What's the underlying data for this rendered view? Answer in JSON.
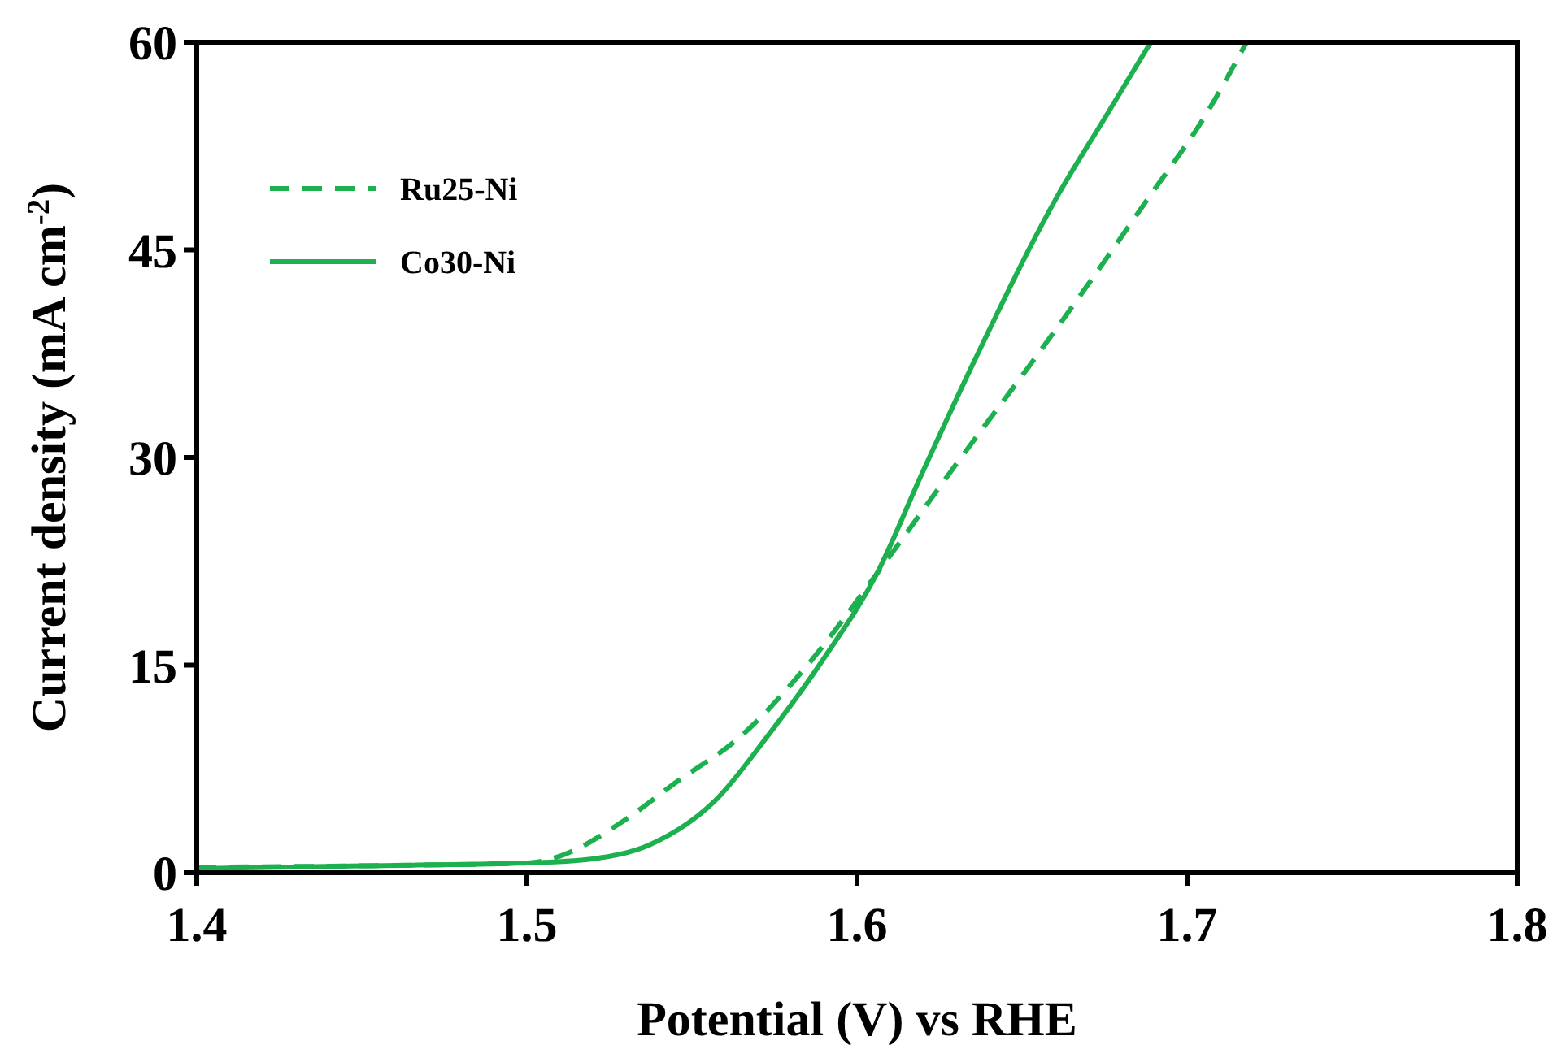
{
  "chart_data": {
    "type": "line",
    "xlabel": "Potential (V) vs RHE",
    "ylabel": "Current density (mA cm$^{-2}$)",
    "xlim": [
      1.4,
      1.8
    ],
    "xticks": [
      1.4,
      1.5,
      1.6,
      1.7,
      1.8
    ],
    "ylim": [
      0,
      60
    ],
    "yticks": [
      0,
      15,
      30,
      45,
      60
    ],
    "legend": "top left",
    "grid": false,
    "series": [
      {
        "name": "Ru25-Ni",
        "color": "#1db04f",
        "line_style": "dashed",
        "x": [
          1.4,
          1.45,
          1.5,
          1.51,
          1.529,
          1.545,
          1.565,
          1.585,
          1.606,
          1.63,
          1.654,
          1.67,
          1.689,
          1.705,
          1.718
        ],
        "values": [
          0.4,
          0.5,
          0.7,
          1.2,
          3.7,
          6.5,
          9.9,
          15,
          21.6,
          29.5,
          37.2,
          42.5,
          49,
          54.5,
          60
        ]
      },
      {
        "name": "Co30-Ni",
        "color": "#1db04f",
        "line_style": "solid",
        "x": [
          1.4,
          1.45,
          1.5,
          1.52,
          1.537,
          1.557,
          1.573,
          1.59,
          1.606,
          1.62,
          1.636,
          1.661,
          1.675,
          1.689
        ],
        "values": [
          0.3,
          0.5,
          0.7,
          1.0,
          2.0,
          5.2,
          9.9,
          15.5,
          21.6,
          29,
          37.2,
          49,
          54.5,
          60
        ]
      }
    ]
  }
}
